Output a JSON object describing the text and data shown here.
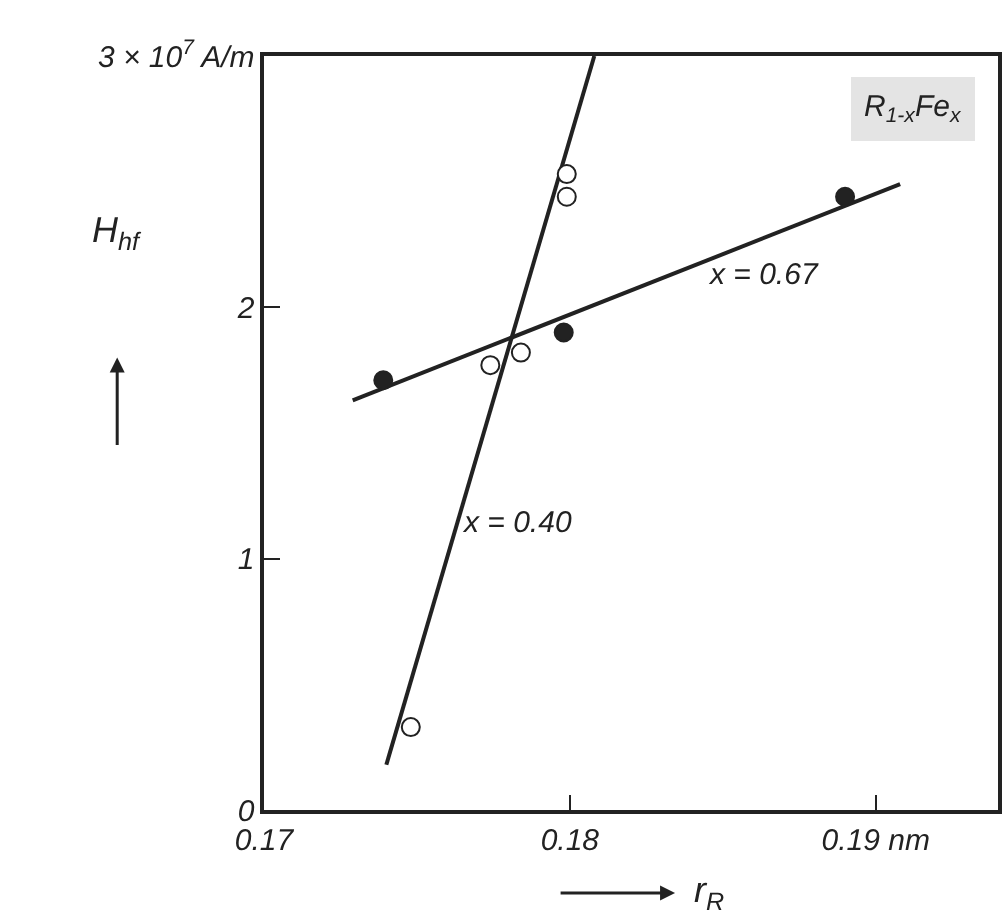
{
  "chart_data": {
    "type": "scatter",
    "xlabel": "r$_{R}$",
    "ylabel": "H$_{hf}$",
    "xlim": [
      0.17,
      0.194
    ],
    "xticks": [
      0.17,
      0.18,
      {
        "value": 0.19,
        "label": "0.19 nm"
      }
    ],
    "ylim": [
      0,
      3
    ],
    "yticks": [
      0,
      1,
      2,
      {
        "value": 3,
        "label": "3 × 10$^{7}$ A/m"
      }
    ],
    "grid": false,
    "marker": "circle",
    "series": [
      {
        "type": "line",
        "color": "#222222",
        "marker": "none",
        "line_style": "solid",
        "x": [
          0.1729,
          0.1908
        ],
        "values": [
          1.63,
          2.49
        ]
      },
      {
        "type": "line",
        "color": "#222222",
        "marker": "none",
        "line_style": "solid",
        "x": [
          0.174,
          0.1808
        ],
        "values": [
          0.18,
          3.0
        ]
      },
      {
        "color": "#222222",
        "x": [
          0.1739,
          0.1798,
          0.189
        ],
        "values": [
          1.71,
          1.9,
          2.44
        ]
      },
      {
        "color": "#ffffff",
        "x": [
          0.1748,
          0.1774,
          0.1784,
          0.1799,
          0.1799
        ],
        "values": [
          0.33,
          1.77,
          1.82,
          2.44,
          2.53
        ]
      }
    ],
    "annotations": [
      "x = 0.67",
      "x = 0.40",
      "R$_{1-x}$Fe$_{x}$"
    ]
  }
}
